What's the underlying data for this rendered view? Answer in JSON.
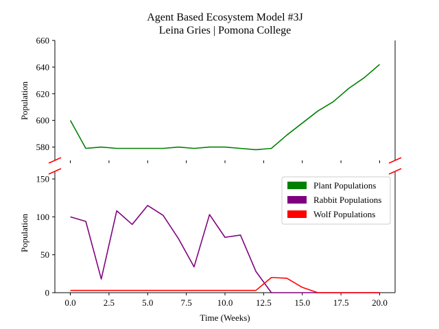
{
  "chart_data": {
    "type": "line",
    "title": "Agent Based Ecosystem Model #3J",
    "subtitle": "Leina Gries | Pomona College",
    "xlabel": "Time (Weeks)",
    "ylabel": "Population",
    "broken_y_axis": true,
    "xlim": [
      -1,
      21
    ],
    "x_ticks": [
      "0.0",
      "2.5",
      "5.0",
      "7.5",
      "10.0",
      "12.5",
      "15.0",
      "17.5",
      "20.0"
    ],
    "upper_panel": {
      "ylim": [
        570,
        660
      ],
      "y_ticks": [
        "580",
        "600",
        "620",
        "640",
        "660"
      ]
    },
    "lower_panel": {
      "ylim": [
        0,
        160
      ],
      "y_ticks": [
        "0",
        "50",
        "100",
        "150"
      ]
    },
    "x": [
      0,
      1,
      2,
      3,
      4,
      5,
      6,
      7,
      8,
      9,
      10,
      11,
      12,
      13,
      14,
      15,
      16,
      17,
      18,
      19,
      20
    ],
    "series": [
      {
        "name": "Plant Populations",
        "color": "#008000",
        "panel": "upper",
        "values": [
          600,
          579,
          580,
          579,
          579,
          579,
          579,
          580,
          579,
          580,
          580,
          579,
          578,
          579,
          589,
          598,
          607,
          614,
          624,
          632,
          642
        ]
      },
      {
        "name": "Rabbit Populations",
        "color": "#800080",
        "panel": "lower",
        "values": [
          100,
          94,
          18,
          108,
          90,
          115,
          102,
          71,
          34,
          103,
          73,
          76,
          28,
          0,
          0,
          0,
          0,
          0,
          0,
          0,
          0
        ]
      },
      {
        "name": "Wolf Populations",
        "color": "#ff0000",
        "panel": "lower",
        "values": [
          3,
          3,
          3,
          3,
          3,
          3,
          3,
          3,
          3,
          3,
          3,
          3,
          3,
          20,
          19,
          7,
          0,
          0,
          0,
          0,
          0
        ]
      }
    ],
    "legend": {
      "placement": "upper-right of lower panel"
    },
    "break_marker_color": "#ff0000",
    "grid": false
  }
}
